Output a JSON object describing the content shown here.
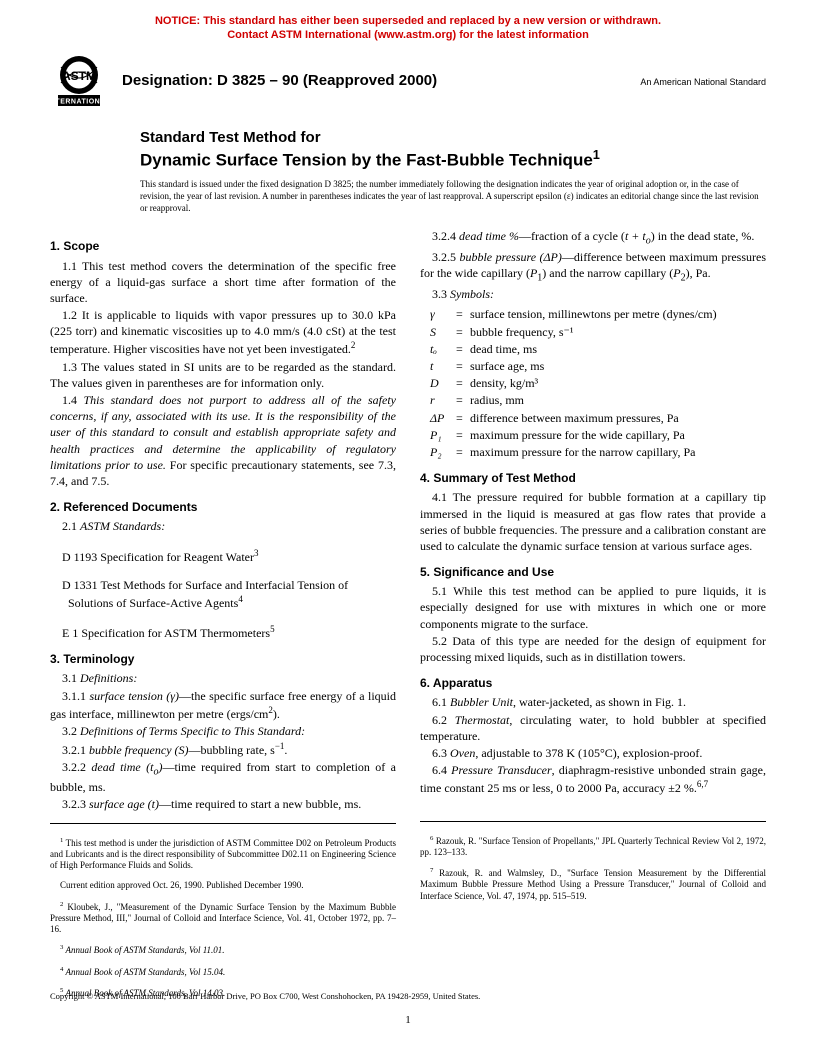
{
  "notice": {
    "line1": "NOTICE: This standard has either been superseded and replaced by a new version or withdrawn.",
    "line2": "Contact ASTM International (www.astm.org) for the latest information"
  },
  "header": {
    "designation_label": "Designation: D 3825 – 90 (Reapproved 2000)",
    "ansi": "An American National Standard"
  },
  "title": {
    "line1": "Standard Test Method for",
    "line2": "Dynamic Surface Tension by the Fast-Bubble Technique",
    "sup": "1"
  },
  "issuance": "This standard is issued under the fixed designation D 3825; the number immediately following the designation indicates the year of original adoption or, in the case of revision, the year of last revision. A number in parentheses indicates the year of last reapproval. A superscript epsilon (ε) indicates an editorial change since the last revision or reapproval.",
  "sections": {
    "s1": {
      "head": "1. Scope",
      "p1": "1.1 This test method covers the determination of the specific free energy of a liquid-gas surface a short time after formation of the surface.",
      "p2a": "1.2 It is applicable to liquids with vapor pressures up to 30.0 kPa (225 torr) and kinematic viscosities up to 4.0 mm/s (4.0 cSt) at the test temperature. Higher viscosities have not yet been investigated.",
      "p2sup": "2",
      "p3": "1.3 The values stated in SI units are to be regarded as the standard. The values given in parentheses are for information only.",
      "p4a": "1.4 ",
      "p4b": "This standard does not purport to address all of the safety concerns, if any, associated with its use. It is the responsibility of the user of this standard to consult and establish appropriate safety and health practices and determine the applicability of regulatory limitations prior to use.",
      "p4c": " For specific precautionary statements, see 7.3, 7.4, and 7.5."
    },
    "s2": {
      "head": "2. Referenced Documents",
      "p1a": "2.1 ",
      "p1b": "ASTM Standards:",
      "r1a": "D 1193 Specification for Reagent Water",
      "r1s": "3",
      "r2a": "D 1331 Test Methods for Surface and Interfacial Tension of Solutions of Surface-Active Agents",
      "r2s": "4",
      "r3a": "E 1 Specification for ASTM Thermometers",
      "r3s": "5"
    },
    "s3": {
      "head": "3. Terminology",
      "p1a": "3.1 ",
      "p1b": "Definitions:",
      "p311a": "3.1.1 ",
      "p311b": "surface tension (γ)",
      "p311c": "—the specific surface free energy of a liquid gas interface, millinewton per metre (ergs/cm",
      "p311d": ").",
      "p311sup": "2",
      "p32a": "3.2 ",
      "p32b": "Definitions of Terms Specific to This Standard:",
      "p321a": "3.2.1 ",
      "p321b": "bubble frequency (S)",
      "p321c": "—bubbling rate, s",
      "p321sup": "−1",
      "p321d": ".",
      "p322a": "3.2.2 ",
      "p322b": "dead time (t",
      "p322sub": "o",
      "p322b2": ")",
      "p322c": "—time required from start to completion of a bubble, ms.",
      "p323a": "3.2.3 ",
      "p323b": "surface age (t)",
      "p323c": "—time required to start a new bubble, ms.",
      "p324a": "3.2.4 ",
      "p324b": "dead time %",
      "p324c": "—fraction of a cycle (",
      "p324d": "t + t",
      "p324sub": "o",
      "p324e": ") in the dead state, %.",
      "p325a": "3.2.5 ",
      "p325b": "bubble pressure (ΔP)",
      "p325c": "—difference between maximum pressures for the wide capillary (",
      "p325d": "P",
      "p325sub1": "1",
      "p325e": ") and the narrow capillary (",
      "p325f": "P",
      "p325sub2": "2",
      "p325g": "), Pa.",
      "p33a": "3.3 ",
      "p33b": "Symbols:",
      "symbols": [
        {
          "sym": "γ",
          "def": "surface tension, millinewtons per metre (dynes/cm)"
        },
        {
          "sym": "S",
          "def": "bubble frequency, s⁻¹"
        },
        {
          "sym": "tₒ",
          "def": "dead time, ms"
        },
        {
          "sym": "t",
          "def": "surface age, ms"
        },
        {
          "sym": "D",
          "def": "density, kg/m³"
        },
        {
          "sym": "r",
          "def": "radius, mm"
        },
        {
          "sym": "ΔP",
          "def": "difference between maximum pressures, Pa"
        },
        {
          "sym": "P₁",
          "def": "maximum pressure for the wide capillary, Pa"
        },
        {
          "sym": "P₂",
          "def": "maximum pressure for the narrow capillary, Pa"
        }
      ]
    },
    "s4": {
      "head": "4. Summary of Test Method",
      "p1": "4.1 The pressure required for bubble formation at a capillary tip immersed in the liquid is measured at gas flow rates that provide a series of bubble frequencies. The pressure and a calibration constant are used to calculate the dynamic surface tension at various surface ages."
    },
    "s5": {
      "head": "5. Significance and Use",
      "p1": "5.1 While this test method can be applied to pure liquids, it is especially designed for use with mixtures in which one or more components migrate to the surface.",
      "p2": "5.2 Data of this type are needed for the design of equipment for processing mixed liquids, such as in distillation towers."
    },
    "s6": {
      "head": "6. Apparatus",
      "p1a": "6.1 ",
      "p1b": "Bubbler Unit",
      "p1c": ", water-jacketed, as shown in Fig. 1.",
      "p2a": "6.2 ",
      "p2b": "Thermostat",
      "p2c": ", circulating water, to hold bubbler at specified temperature.",
      "p3a": "6.3 ",
      "p3b": "Oven",
      "p3c": ", adjustable to 378 K (105°C), explosion-proof.",
      "p4a": "6.4 ",
      "p4b": "Pressure Transducer",
      "p4c": ", diaphragm-resistive unbonded strain gage, time constant 25 ms or less, 0 to 2000 Pa, accuracy ±2 %.",
      "p4sup": "6,7"
    }
  },
  "footnotes_left": [
    {
      "sup": "1",
      "text": " This test method is under the jurisdiction of ASTM Committee D02 on Petroleum Products and Lubricants and is the direct responsibility of Subcommittee D02.11 on Engineering Science of High Performance Fluids and Solids."
    },
    {
      "sup": "",
      "text": "Current edition approved Oct. 26, 1990. Published December 1990."
    },
    {
      "sup": "2",
      "text": " Kloubek, J., \"Measurement of the Dynamic Surface Tension by the Maximum Bubble Pressure Method, III,\" Journal of Colloid and Interface Science, Vol. 41, October 1972, pp. 7–16."
    },
    {
      "sup": "3",
      "text": " Annual Book of ASTM Standards, Vol 11.01."
    },
    {
      "sup": "4",
      "text": " Annual Book of ASTM Standards, Vol 15.04."
    },
    {
      "sup": "5",
      "text": " Annual Book of ASTM Standards, Vol 14.03."
    }
  ],
  "footnotes_right": [
    {
      "sup": "6",
      "text": " Razouk, R. \"Surface Tension of Propellants,\" JPL Quarterly Technical Review Vol 2, 1972, pp. 123–133."
    },
    {
      "sup": "7",
      "text": " Razouk, R. and Walmsley, D., \"Surface Tension Measurement by the Differential Maximum Bubble Pressure Method Using a Pressure Transducer,\" Journal of Colloid and Interface Science, Vol. 47, 1974, pp. 515–519."
    }
  ],
  "copyright": "Copyright © ASTM International, 100 Barr Harbor Drive, PO Box C700, West Conshohocken, PA 19428-2959, United States.",
  "pagenum": "1"
}
